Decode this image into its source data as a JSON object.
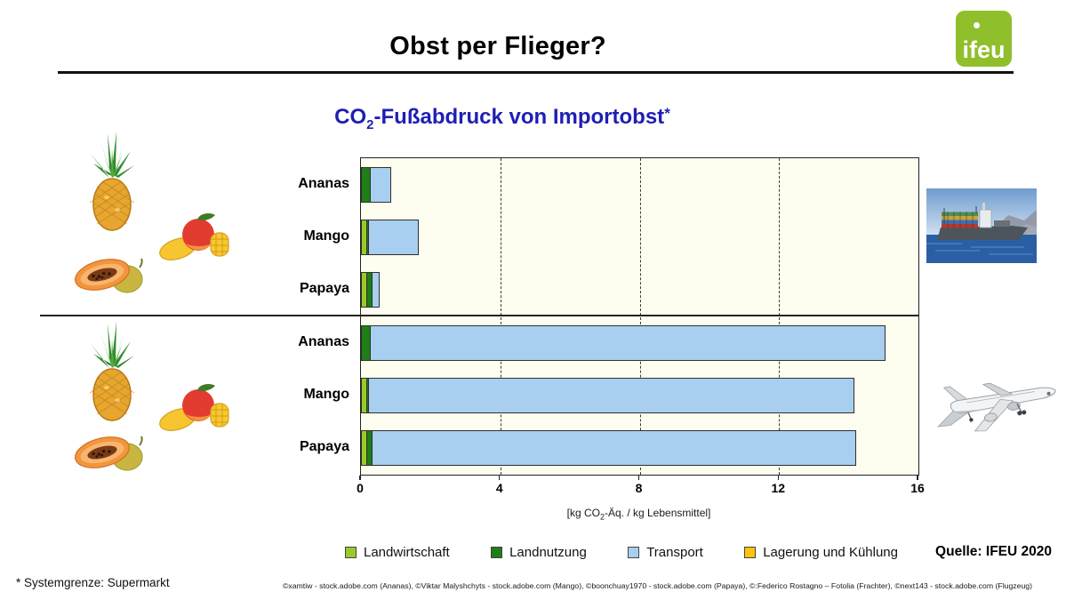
{
  "header": {
    "title": "Obst per Flieger?",
    "logo_text": "ifeu"
  },
  "chart": {
    "title_pre": "CO",
    "title_sub": "2",
    "title_post": "-Fußabdruck von Importobst",
    "title_mark": "*",
    "xlabel_pre": "[kg CO",
    "xlabel_sub": "2",
    "xlabel_post": "-Äq. / kg Lebensmittel]"
  },
  "chart_data": {
    "type": "bar",
    "subtype": "horizontal-stacked",
    "title": "CO2-Fußabdruck von Importobst*",
    "categories": [
      "Ananas",
      "Mango",
      "Papaya",
      "Ananas",
      "Mango",
      "Papaya"
    ],
    "group_of_rows": [
      "Frachter (Schiff)",
      "Frachter (Schiff)",
      "Frachter (Schiff)",
      "Flugzeug",
      "Flugzeug",
      "Flugzeug"
    ],
    "series": [
      {
        "name": "Landwirtschaft",
        "color": "#9cc929",
        "values": [
          0,
          0.18,
          0.18,
          0,
          0.18,
          0.18
        ]
      },
      {
        "name": "Landnutzung",
        "color": "#1e7e17",
        "values": [
          0.27,
          0.07,
          0.17,
          0.27,
          0.07,
          0.17
        ]
      },
      {
        "name": "Transport",
        "color": "#a8cff0",
        "values": [
          0.6,
          1.45,
          0.22,
          14.8,
          13.95,
          13.9
        ]
      },
      {
        "name": "Lagerung und Kühlung",
        "color": "#ffc20e",
        "values": [
          0,
          0,
          0,
          0,
          0,
          0
        ]
      }
    ],
    "totals": [
      0.87,
      1.7,
      0.57,
      15.07,
      14.2,
      14.25
    ],
    "xlim": [
      0,
      16
    ],
    "x_ticks": [
      0,
      4,
      8,
      12,
      16
    ],
    "gridlines_at": [
      4,
      8,
      12
    ],
    "xlabel": "[kg CO2-Äq. / kg Lebensmittel]",
    "grid": "dashed-vertical",
    "legend_position": "bottom"
  },
  "legend": {
    "items": [
      {
        "label": "Landwirtschaft",
        "color": "#9cc929"
      },
      {
        "label": "Landnutzung",
        "color": "#1e7e17"
      },
      {
        "label": "Transport",
        "color": "#a8cff0"
      },
      {
        "label": "Lagerung und Kühlung",
        "color": "#ffc20e"
      }
    ]
  },
  "source": {
    "label": "Quelle: IFEU 2020"
  },
  "footnote": "* Systemgrenze: Supermarkt",
  "credits": "©xamtiw - stock.adobe.com (Ananas), ©Viktar Malyshchyts - stock.adobe.com (Mango), ©boonchuay1970 - stock.adobe.com (Papaya), ©:Federico Rostagno – Fotolia (Frachter), ©next143 - stock.adobe.com (Flugzeug)",
  "colors": {
    "title_blue": "#1f1fb4",
    "plot_background": "#fdfdf0",
    "logo_green": "#8fbf2b"
  }
}
